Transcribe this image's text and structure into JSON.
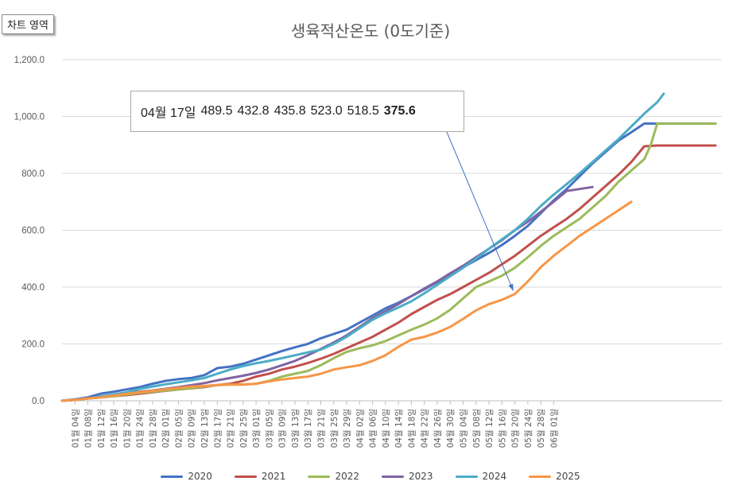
{
  "chart_area_label": "차트 영역",
  "callout": {
    "date": "04월 17일",
    "values": [
      "489.5",
      "432.8",
      "435.8",
      "523.0",
      "518.5"
    ],
    "highlight": "375.6"
  },
  "chart_data": {
    "type": "line",
    "title": "생육적산온도 (0도기준)",
    "xlabel": "",
    "ylabel": "",
    "ylim": [
      0,
      1200
    ],
    "yticks": [
      "0.0",
      "200.0",
      "400.0",
      "600.0",
      "800.0",
      "1,000.0",
      "1,200.0"
    ],
    "grid": true,
    "legend_position": "bottom",
    "categories": [
      "01월 04일",
      "01월 08일",
      "01월 12일",
      "01월 16일",
      "01월 20일",
      "01월 24일",
      "01월 28일",
      "02월 01일",
      "02월 05일",
      "02월 09일",
      "02월 13일",
      "02월 17일",
      "02월 21일",
      "02월 25일",
      "03월 01일",
      "03월 05일",
      "03월 09일",
      "03월 13일",
      "03월 17일",
      "03월 21일",
      "03월 25일",
      "03월 29일",
      "04월 02일",
      "04월 06일",
      "04월 10일",
      "04월 14일",
      "04월 18일",
      "04월 22일",
      "04월 26일",
      "04월 30일",
      "05월 04일",
      "05월 08일",
      "05월 12일",
      "05월 16일",
      "05월 20일",
      "05월 24일",
      "05월 28일",
      "06월 01일"
    ],
    "series": [
      {
        "name": "2020",
        "color": "#4472C4",
        "points": [
          [
            0,
            0
          ],
          [
            4,
            5
          ],
          [
            8,
            12
          ],
          [
            12,
            25
          ],
          [
            16,
            32
          ],
          [
            20,
            40
          ],
          [
            24,
            48
          ],
          [
            28,
            60
          ],
          [
            32,
            70
          ],
          [
            36,
            76
          ],
          [
            40,
            80
          ],
          [
            44,
            90
          ],
          [
            48,
            115
          ],
          [
            52,
            120
          ],
          [
            56,
            130
          ],
          [
            60,
            145
          ],
          [
            64,
            160
          ],
          [
            68,
            175
          ],
          [
            72,
            188
          ],
          [
            76,
            200
          ],
          [
            80,
            220
          ],
          [
            84,
            235
          ],
          [
            88,
            250
          ],
          [
            92,
            275
          ],
          [
            96,
            300
          ],
          [
            100,
            325
          ],
          [
            104,
            345
          ],
          [
            108,
            368
          ],
          [
            112,
            392
          ],
          [
            116,
            418
          ],
          [
            120,
            445
          ],
          [
            124,
            470
          ],
          [
            128,
            495
          ],
          [
            132,
            520
          ],
          [
            136,
            548
          ],
          [
            140,
            580
          ],
          [
            144,
            615
          ],
          [
            148,
            660
          ],
          [
            152,
            705
          ],
          [
            156,
            745
          ],
          [
            160,
            790
          ],
          [
            164,
            835
          ],
          [
            168,
            875
          ],
          [
            172,
            915
          ],
          [
            176,
            945
          ],
          [
            180,
            975
          ],
          [
            184,
            975
          ],
          [
            190,
            975
          ],
          [
            196,
            975
          ],
          [
            202,
            975
          ]
        ]
      },
      {
        "name": "2021",
        "color": "#C0504D",
        "points": [
          [
            0,
            0
          ],
          [
            4,
            3
          ],
          [
            8,
            8
          ],
          [
            12,
            12
          ],
          [
            16,
            16
          ],
          [
            20,
            20
          ],
          [
            24,
            25
          ],
          [
            28,
            30
          ],
          [
            32,
            35
          ],
          [
            36,
            40
          ],
          [
            40,
            44
          ],
          [
            44,
            48
          ],
          [
            48,
            55
          ],
          [
            52,
            60
          ],
          [
            56,
            70
          ],
          [
            60,
            85
          ],
          [
            64,
            95
          ],
          [
            68,
            110
          ],
          [
            72,
            120
          ],
          [
            76,
            133
          ],
          [
            80,
            148
          ],
          [
            84,
            165
          ],
          [
            88,
            185
          ],
          [
            92,
            205
          ],
          [
            96,
            225
          ],
          [
            100,
            250
          ],
          [
            104,
            275
          ],
          [
            108,
            305
          ],
          [
            112,
            330
          ],
          [
            116,
            355
          ],
          [
            120,
            375
          ],
          [
            124,
            400
          ],
          [
            128,
            425
          ],
          [
            132,
            450
          ],
          [
            136,
            480
          ],
          [
            140,
            510
          ],
          [
            144,
            545
          ],
          [
            148,
            580
          ],
          [
            152,
            610
          ],
          [
            156,
            640
          ],
          [
            160,
            675
          ],
          [
            164,
            715
          ],
          [
            168,
            755
          ],
          [
            172,
            795
          ],
          [
            176,
            840
          ],
          [
            180,
            895
          ],
          [
            184,
            898
          ],
          [
            190,
            898
          ],
          [
            196,
            898
          ],
          [
            202,
            898
          ]
        ]
      },
      {
        "name": "2022",
        "color": "#9BBB59",
        "points": [
          [
            0,
            0
          ],
          [
            4,
            3
          ],
          [
            8,
            8
          ],
          [
            12,
            12
          ],
          [
            16,
            16
          ],
          [
            20,
            22
          ],
          [
            24,
            28
          ],
          [
            28,
            32
          ],
          [
            32,
            36
          ],
          [
            36,
            40
          ],
          [
            40,
            45
          ],
          [
            44,
            50
          ],
          [
            48,
            55
          ],
          [
            52,
            57
          ],
          [
            56,
            57
          ],
          [
            60,
            60
          ],
          [
            64,
            70
          ],
          [
            68,
            85
          ],
          [
            72,
            95
          ],
          [
            76,
            105
          ],
          [
            80,
            125
          ],
          [
            84,
            150
          ],
          [
            88,
            172
          ],
          [
            92,
            185
          ],
          [
            96,
            195
          ],
          [
            100,
            210
          ],
          [
            104,
            230
          ],
          [
            108,
            250
          ],
          [
            112,
            268
          ],
          [
            116,
            290
          ],
          [
            120,
            320
          ],
          [
            124,
            360
          ],
          [
            128,
            400
          ],
          [
            132,
            420
          ],
          [
            136,
            440
          ],
          [
            140,
            468
          ],
          [
            144,
            505
          ],
          [
            148,
            545
          ],
          [
            152,
            580
          ],
          [
            156,
            610
          ],
          [
            160,
            640
          ],
          [
            164,
            680
          ],
          [
            168,
            720
          ],
          [
            172,
            770
          ],
          [
            176,
            810
          ],
          [
            180,
            850
          ],
          [
            182,
            900
          ],
          [
            184,
            975
          ],
          [
            190,
            975
          ],
          [
            196,
            975
          ],
          [
            202,
            975
          ]
        ]
      },
      {
        "name": "2023",
        "color": "#8064A2",
        "points": [
          [
            0,
            0
          ],
          [
            4,
            3
          ],
          [
            8,
            10
          ],
          [
            12,
            15
          ],
          [
            16,
            20
          ],
          [
            20,
            28
          ],
          [
            24,
            32
          ],
          [
            28,
            36
          ],
          [
            32,
            42
          ],
          [
            36,
            48
          ],
          [
            40,
            55
          ],
          [
            44,
            62
          ],
          [
            48,
            72
          ],
          [
            52,
            80
          ],
          [
            56,
            88
          ],
          [
            60,
            98
          ],
          [
            64,
            110
          ],
          [
            68,
            125
          ],
          [
            72,
            140
          ],
          [
            76,
            160
          ],
          [
            80,
            182
          ],
          [
            84,
            205
          ],
          [
            88,
            230
          ],
          [
            92,
            260
          ],
          [
            96,
            290
          ],
          [
            100,
            315
          ],
          [
            104,
            340
          ],
          [
            108,
            368
          ],
          [
            112,
            395
          ],
          [
            116,
            420
          ],
          [
            120,
            448
          ],
          [
            124,
            475
          ],
          [
            128,
            505
          ],
          [
            132,
            535
          ],
          [
            136,
            565
          ],
          [
            140,
            600
          ],
          [
            144,
            630
          ],
          [
            148,
            665
          ],
          [
            152,
            700
          ],
          [
            156,
            738
          ],
          [
            164,
            752
          ]
        ]
      },
      {
        "name": "2024",
        "color": "#4BACC6",
        "points": [
          [
            0,
            0
          ],
          [
            4,
            3
          ],
          [
            8,
            8
          ],
          [
            12,
            15
          ],
          [
            16,
            22
          ],
          [
            20,
            30
          ],
          [
            24,
            42
          ],
          [
            28,
            50
          ],
          [
            32,
            58
          ],
          [
            36,
            65
          ],
          [
            40,
            72
          ],
          [
            44,
            80
          ],
          [
            48,
            95
          ],
          [
            52,
            110
          ],
          [
            56,
            122
          ],
          [
            60,
            132
          ],
          [
            64,
            140
          ],
          [
            68,
            150
          ],
          [
            72,
            160
          ],
          [
            76,
            170
          ],
          [
            80,
            180
          ],
          [
            84,
            200
          ],
          [
            88,
            225
          ],
          [
            92,
            255
          ],
          [
            96,
            285
          ],
          [
            100,
            308
          ],
          [
            104,
            328
          ],
          [
            108,
            350
          ],
          [
            112,
            378
          ],
          [
            116,
            408
          ],
          [
            120,
            438
          ],
          [
            124,
            468
          ],
          [
            128,
            500
          ],
          [
            132,
            535
          ],
          [
            136,
            568
          ],
          [
            140,
            600
          ],
          [
            144,
            640
          ],
          [
            148,
            685
          ],
          [
            152,
            725
          ],
          [
            156,
            762
          ],
          [
            160,
            800
          ],
          [
            164,
            840
          ],
          [
            168,
            880
          ],
          [
            172,
            920
          ],
          [
            176,
            965
          ],
          [
            180,
            1010
          ],
          [
            184,
            1050
          ],
          [
            186,
            1080
          ]
        ]
      },
      {
        "name": "2025",
        "color": "#F79646",
        "points": [
          [
            0,
            0
          ],
          [
            4,
            3
          ],
          [
            8,
            8
          ],
          [
            12,
            12
          ],
          [
            16,
            18
          ],
          [
            20,
            25
          ],
          [
            24,
            30
          ],
          [
            28,
            35
          ],
          [
            32,
            40
          ],
          [
            36,
            45
          ],
          [
            40,
            50
          ],
          [
            44,
            52
          ],
          [
            48,
            55
          ],
          [
            52,
            57
          ],
          [
            56,
            57
          ],
          [
            60,
            60
          ],
          [
            64,
            68
          ],
          [
            68,
            75
          ],
          [
            72,
            80
          ],
          [
            76,
            85
          ],
          [
            80,
            95
          ],
          [
            84,
            110
          ],
          [
            88,
            118
          ],
          [
            92,
            125
          ],
          [
            96,
            140
          ],
          [
            100,
            160
          ],
          [
            104,
            190
          ],
          [
            108,
            215
          ],
          [
            112,
            225
          ],
          [
            116,
            240
          ],
          [
            120,
            260
          ],
          [
            124,
            288
          ],
          [
            128,
            318
          ],
          [
            132,
            340
          ],
          [
            136,
            355
          ],
          [
            140,
            375.6
          ],
          [
            144,
            420
          ],
          [
            148,
            470
          ],
          [
            152,
            510
          ],
          [
            156,
            545
          ],
          [
            160,
            580
          ],
          [
            164,
            610
          ],
          [
            168,
            640
          ],
          [
            172,
            670
          ],
          [
            176,
            700
          ]
        ]
      }
    ]
  }
}
